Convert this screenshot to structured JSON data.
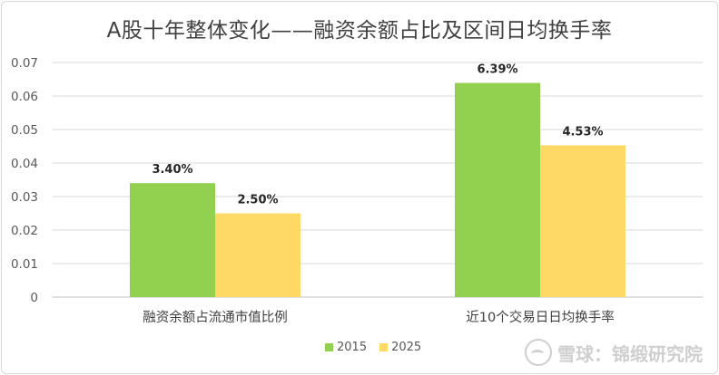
{
  "chart_data": {
    "type": "bar",
    "title": "A股十年整体变化——融资余额占比及区间日均换手率",
    "categories": [
      "融资余额占流通市值比例",
      "近10个交易日日均换手率"
    ],
    "series": [
      {
        "name": "2015",
        "values": [
          0.034,
          0.0639
        ],
        "labels": [
          "3.40%",
          "6.39%"
        ],
        "color": "#92d050"
      },
      {
        "name": "2025",
        "values": [
          0.025,
          0.0453
        ],
        "labels": [
          "2.50%",
          "4.53%"
        ],
        "color": "#ffd966"
      }
    ],
    "ylim": [
      0,
      0.07
    ],
    "yticks": [
      "0",
      "0.01",
      "0.02",
      "0.03",
      "0.04",
      "0.05",
      "0.06",
      "0.07"
    ],
    "ytick_values": [
      0,
      0.01,
      0.02,
      0.03,
      0.04,
      0.05,
      0.06,
      0.07
    ],
    "grid": true,
    "legend_position": "bottom"
  },
  "watermark": {
    "text": "雪球：锦缎研究院",
    "icon": "snowball-logo-icon"
  }
}
